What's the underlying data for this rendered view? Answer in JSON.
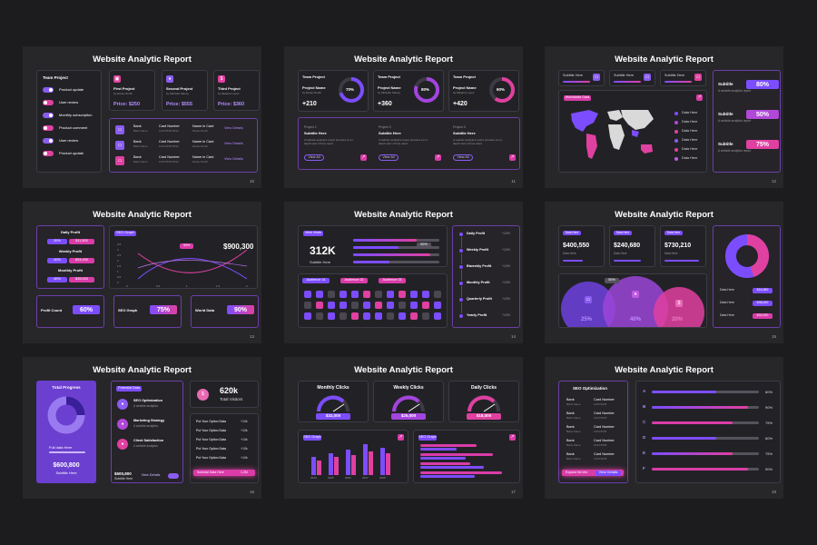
{
  "common_title": "Website Analytic Report",
  "slides": {
    "s10": {
      "page": "10",
      "team_title": "Team Project",
      "toggles": [
        "Product update",
        "User review",
        "Monthly subscription",
        "Product comment",
        "User review",
        "Product update"
      ],
      "projects": [
        {
          "name": "First Project",
          "by": "by Daniel Smith",
          "price": "Price: $250"
        },
        {
          "name": "Second Project",
          "by": "by Michelle Stacey",
          "price": "Price: $555"
        },
        {
          "name": "Third Project",
          "by": "by Melanie Lopez",
          "price": "Price: $360"
        }
      ],
      "table_rows": [
        {
          "c1": "Bank",
          "c1b": "Bank Name",
          "c2": "Card Number",
          "c2b": "1234 5678 9012",
          "c3": "Name in Card",
          "c3b": "Daniel Smith",
          "link": "View Details"
        },
        {
          "c1": "Bank",
          "c1b": "Bank Name",
          "c2": "Card Number",
          "c2b": "1234 5678 9012",
          "c3": "Name in Card",
          "c3b": "Daniel Smith",
          "link": "View Details"
        },
        {
          "c1": "Bank",
          "c1b": "Bank Name",
          "c2": "Card Number",
          "c2b": "1234 5678 9012",
          "c3": "Name in Card",
          "c3b": "Daniel Smith",
          "link": "View Details"
        }
      ]
    },
    "s11": {
      "page": "11",
      "cards": [
        {
          "title": "Team Project",
          "pname": "Project Name",
          "by": "by Daniel Smith",
          "value": "+210",
          "pct": "70%",
          "fill": 0.7
        },
        {
          "title": "Team Project",
          "pname": "Project Name",
          "by": "by Michelle Stacey",
          "value": "+360",
          "pct": "80%",
          "fill": 0.8
        },
        {
          "title": "Team Project",
          "pname": "Project Name",
          "by": "by Melanie Lopez",
          "value": "+420",
          "pct": "60%",
          "fill": 0.6
        }
      ],
      "sub": [
        {
          "label": "Project 1",
          "title": "Subtitle Here",
          "desc": "A website analytics report provides an in-depth view of how users",
          "btn": "View All"
        },
        {
          "label": "Project 2",
          "title": "Subtitle Here",
          "desc": "A website analytics report provides an in-depth view of how users",
          "btn": "View All"
        },
        {
          "label": "Project 3",
          "title": "Subtitle Here",
          "desc": "A website analytics report provides an in-depth view of how users",
          "btn": "View All"
        }
      ]
    },
    "s12": {
      "page": "12",
      "tabs": [
        "Subtitle Here",
        "Subtitle Here",
        "Subtitle Here"
      ],
      "map_label": "Worldwide Data",
      "legend": [
        "Data Here",
        "Data Here",
        "Data Here",
        "Data Here",
        "Data Here",
        "Data Here"
      ],
      "stats": [
        {
          "label": "Subtitle",
          "desc": "A website analytics report",
          "pct": "80%"
        },
        {
          "label": "Subtitle",
          "desc": "A website analytics report",
          "pct": "50%"
        },
        {
          "label": "Subtitle",
          "desc": "A website analytics report",
          "pct": "75%"
        }
      ]
    },
    "s13": {
      "page": "13",
      "profits": [
        {
          "label": "Daily Profit",
          "a": "20%",
          "b": "$11,500"
        },
        {
          "label": "Weekly Profit",
          "a": "40%",
          "b": "$24,000"
        },
        {
          "label": "Monthly Profit",
          "a": "40%",
          "b": "$35,000"
        }
      ],
      "graph_label": "SEO Graph",
      "graph_tag": "30%",
      "graph_value": "$900,300",
      "yticks": [
        "3.5",
        "3",
        "2.5",
        "2",
        "1.5",
        "1",
        "0.5",
        "0"
      ],
      "xticks": [
        "0",
        "0.5",
        "1",
        "1.5",
        "2"
      ],
      "bottom": [
        {
          "label": "Profit Count",
          "pct": "60%"
        },
        {
          "label": "SEO Graph",
          "pct": "75%"
        },
        {
          "label": "World Data",
          "pct": "90%"
        }
      ]
    },
    "s14": {
      "page": "14",
      "web_visits": "Web Visits",
      "big_value": "312K",
      "big_sub": "Subtitle Here",
      "bar_tag": "50%",
      "audiences": [
        "Audience 01",
        "Audience 02",
        "Audience 03"
      ],
      "right_list": [
        {
          "label": "Daily Profit",
          "v": "+10%"
        },
        {
          "label": "Weekly Profit",
          "v": "+10%"
        },
        {
          "label": "Biweekly Profit",
          "v": "+10%"
        },
        {
          "label": "Monthly Profit",
          "v": "+10%"
        },
        {
          "label": "Quarterly Profit",
          "v": "+10%"
        },
        {
          "label": "Yearly Profit",
          "v": "+10%"
        }
      ]
    },
    "s15": {
      "page": "15",
      "tiles": [
        {
          "tag": "Data Here",
          "value": "$400,550",
          "sub": "Data Here"
        },
        {
          "tag": "Data Here",
          "value": "$240,680",
          "sub": "Data Here"
        },
        {
          "tag": "Data Here",
          "value": "$730,210",
          "sub": "Data Here"
        }
      ],
      "bubble_tag": "50%",
      "bubbles": [
        "25%",
        "40%",
        "20%"
      ],
      "right_rows": [
        {
          "label": "Data Here",
          "v": "$16,350"
        },
        {
          "label": "Data Here",
          "v": "$38,000"
        },
        {
          "label": "Data Here",
          "v": "$32,000"
        }
      ],
      "donut": [
        0.45,
        0.55
      ]
    },
    "s16": {
      "page": "16",
      "tp_title": "Total Progress",
      "tp_sub": "Full data Here",
      "tp_value": "$600,800",
      "tp_value_sub": "Subtitle Here",
      "potential": "Potential Data",
      "items": [
        {
          "title": "SEO Optimization",
          "desc": "A website analytics"
        },
        {
          "title": "Marketing Strategy",
          "desc": "A website analytics"
        },
        {
          "title": "Client Satisfaction",
          "desc": "A website analytics"
        }
      ],
      "foot_value": "$600,800",
      "foot_sub": "Subtitle Here",
      "foot_link": "View Details",
      "visitors": "620k",
      "visitors_label": "Total Visitors",
      "options": [
        {
          "label": "Put Your Option Data",
          "v": "+10k"
        },
        {
          "label": "Put Your Option Data",
          "v": "+10k"
        },
        {
          "label": "Put Your Option Data",
          "v": "+10k"
        },
        {
          "label": "Put Your Option Data",
          "v": "+10k"
        },
        {
          "label": "Put Your Option Data",
          "v": "+10k"
        }
      ],
      "subtotal_label": "Subtotal Data Here",
      "subtotal_v": "1.2M"
    },
    "s17": {
      "page": "17",
      "gauges": [
        {
          "title": "Monthly Clicks",
          "value": "$32,000"
        },
        {
          "title": "Weekly Clicks",
          "value": "$25,000"
        },
        {
          "title": "Daily Clicks",
          "value": "$18,000"
        }
      ],
      "left_chart_label": "SEO Graph",
      "right_chart_label": "SEO Graph",
      "years": [
        "2024",
        "2025",
        "2026",
        "2027",
        "2028"
      ]
    },
    "s18": {
      "page": "18",
      "seo_title": "SEO Optimization",
      "seo_rows": [
        {
          "c1": "Bank",
          "c1b": "Bank Name",
          "c2": "Card Number",
          "c2b": "1234 5678"
        },
        {
          "c1": "Bank",
          "c1b": "Bank Name",
          "c2": "Card Number",
          "c2b": "1234 5678"
        },
        {
          "c1": "Bank",
          "c1b": "Bank Name",
          "c2": "Card Number",
          "c2b": "1234 5678"
        },
        {
          "c1": "Bank",
          "c1b": "Bank Name",
          "c2": "Card Number",
          "c2b": "1234 5678"
        },
        {
          "c1": "Bank",
          "c1b": "Bank Name",
          "c2": "Card Number",
          "c2b": "1234 5678"
        }
      ],
      "seo_btn_label": "Expand the info",
      "seo_btn_link": "View Details",
      "letters": [
        {
          "k": "A",
          "pct": "60%"
        },
        {
          "k": "B",
          "pct": "90%"
        },
        {
          "k": "C",
          "pct": "75%"
        },
        {
          "k": "D",
          "pct": "60%"
        },
        {
          "k": "E",
          "pct": "75%"
        },
        {
          "k": "F",
          "pct": "90%"
        }
      ]
    }
  }
}
